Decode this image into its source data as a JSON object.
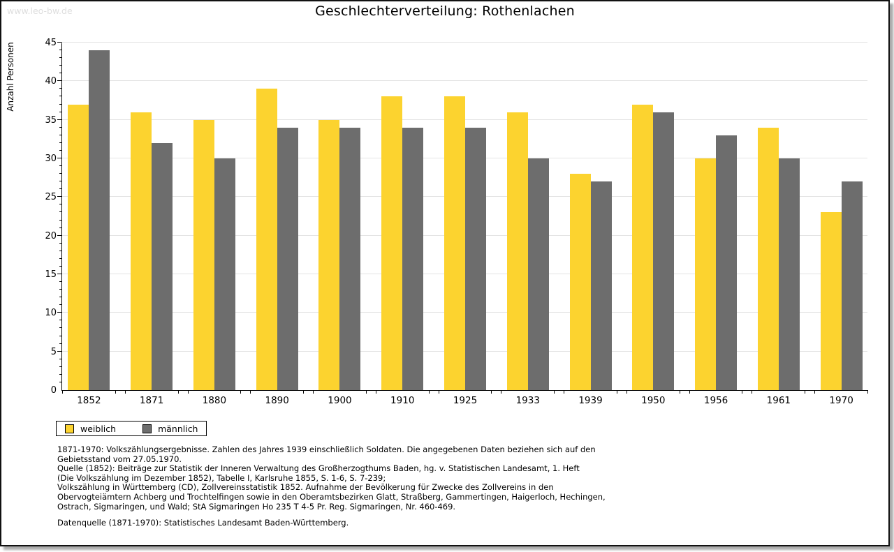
{
  "watermark": "www.leo-bw.de",
  "title": "Geschlechterverteilung: Rothenlachen",
  "chart_data": {
    "type": "bar",
    "title": "Geschlechterverteilung: Rothenlachen",
    "categories": [
      "1852",
      "1871",
      "1880",
      "1890",
      "1900",
      "1910",
      "1925",
      "1933",
      "1939",
      "1950",
      "1956",
      "1961",
      "1970"
    ],
    "series": [
      {
        "name": "weiblich",
        "color": "#fcd32f",
        "values": [
          37,
          36,
          35,
          39,
          35,
          38,
          38,
          36,
          28,
          37,
          30,
          34,
          23
        ]
      },
      {
        "name": "männlich",
        "color": "#6d6d6d",
        "values": [
          44,
          32,
          30,
          34,
          34,
          34,
          34,
          30,
          27,
          36,
          33,
          30,
          27
        ]
      }
    ],
    "xlabel": "",
    "ylabel": "Anzahl Personen",
    "ylim": [
      0,
      45
    ],
    "ytick_step": 5,
    "grid": "horizontal-major",
    "legend_position": "bottom-left"
  },
  "legend": {
    "items": [
      {
        "label": "weiblich",
        "color": "#fcd32f"
      },
      {
        "label": "männlich",
        "color": "#6d6d6d"
      }
    ]
  },
  "footnotes": {
    "lines": [
      "1871-1970: Volkszählungsergebnisse. Zahlen des Jahres 1939 einschließlich Soldaten. Die angegebenen Daten beziehen sich auf den",
      "Gebietsstand vom 27.05.1970.",
      "Quelle (1852): Beiträge zur Statistik der Inneren Verwaltung des Großherzogthums Baden, hg. v. Statistischen Landesamt, 1. Heft",
      "(Die Volkszählung im Dezember 1852), Tabelle I, Karlsruhe 1855, S. 1-6, S. 7-239;",
      "Volkszählung in Württemberg (CD), Zollvereinsstatistik 1852. Aufnahme der Bevölkerung für Zwecke des Zollvereins in den",
      "Obervogteiämtern Achberg und Trochtelfingen sowie in den Oberamtsbezirken Glatt, Straßberg, Gammertingen, Haigerloch, Hechingen,",
      "Ostrach, Sigmaringen, und Wald; StA Sigmaringen Ho 235 T 4-5 Pr. Reg. Sigmaringen, Nr. 460-469."
    ],
    "datasource": "Datenquelle (1871-1970): Statistisches Landesamt Baden-Württemberg."
  },
  "colors": {
    "weiblich": "#fcd32f",
    "maennlich": "#6d6d6d",
    "gridline": "#e3e3e3",
    "watermark": "#dedede",
    "frame_border": "#111111"
  }
}
